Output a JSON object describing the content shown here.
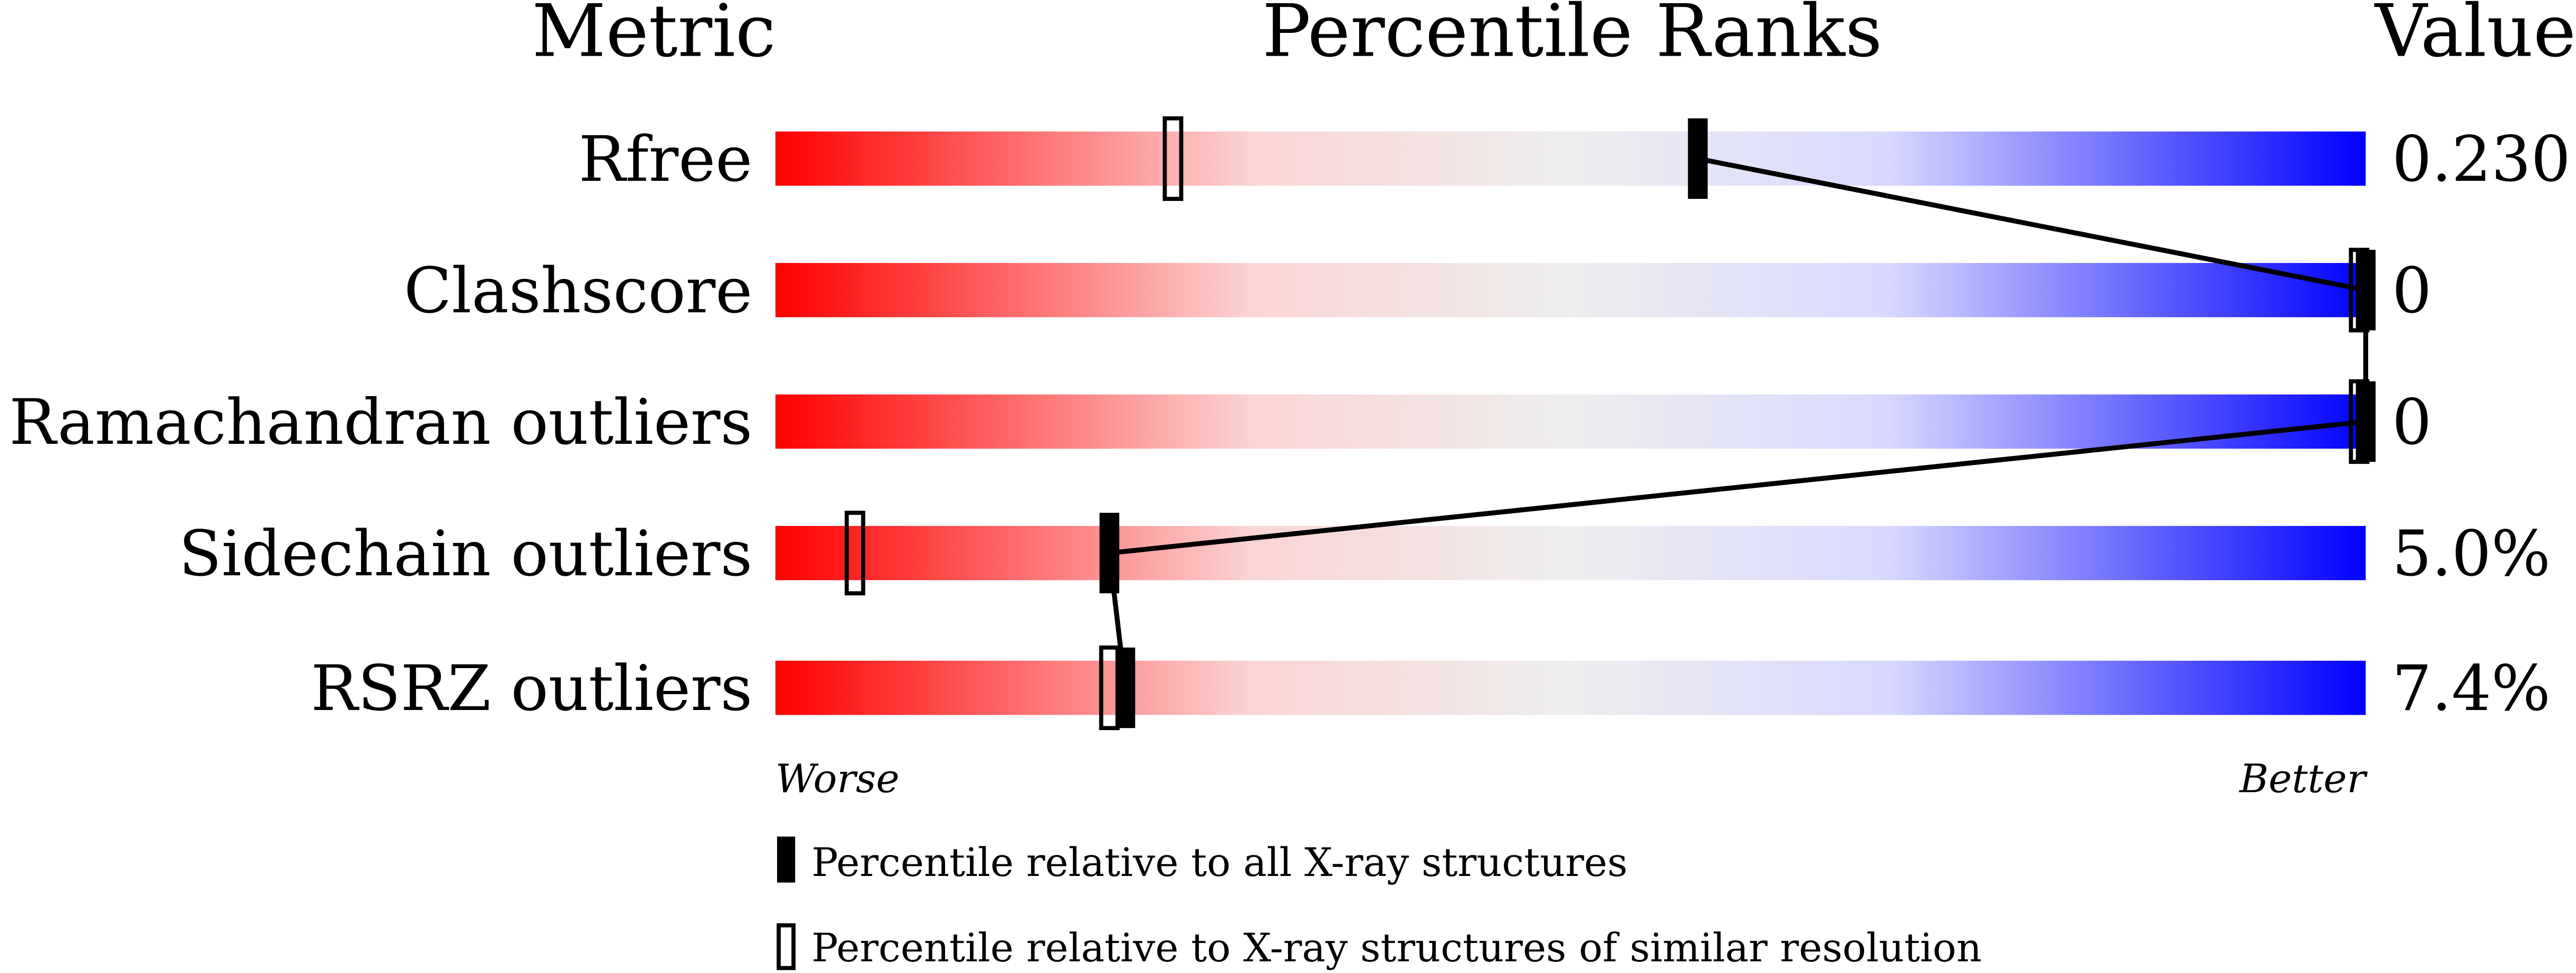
{
  "chart_data": {
    "type": "percentile-bar",
    "headers": {
      "metric": "Metric",
      "ranks": "Percentile Ranks",
      "value": "Value"
    },
    "xlim": [
      0,
      100
    ],
    "axis_labels": {
      "left": "Worse",
      "right": "Better"
    },
    "gradient_colors": [
      "#ff0000",
      "#fbd4d4",
      "#eeeeee",
      "#d8d8ff",
      "#0000ff"
    ],
    "metrics": [
      {
        "name": "Rfree",
        "value": "0.230",
        "percentile_all": 58,
        "percentile_similar": 25
      },
      {
        "name": "Clashscore",
        "value": "0",
        "percentile_all": 100,
        "percentile_similar": 100
      },
      {
        "name": "Ramachandran outliers",
        "value": "0",
        "percentile_all": 100,
        "percentile_similar": 100
      },
      {
        "name": "Sidechain outliers",
        "value": "5.0%",
        "percentile_all": 21,
        "percentile_similar": 5
      },
      {
        "name": "RSRZ outliers",
        "value": "7.4%",
        "percentile_all": 22,
        "percentile_similar": 21
      }
    ],
    "legend": [
      {
        "marker": "filled",
        "label": "Percentile relative to all X-ray structures"
      },
      {
        "marker": "open",
        "label": "Percentile relative to X-ray structures of similar resolution"
      }
    ]
  }
}
